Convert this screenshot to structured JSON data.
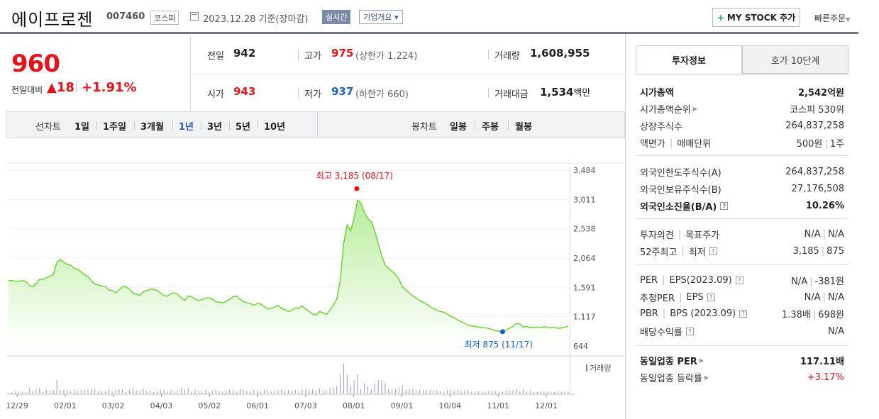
{
  "header": {
    "company": "에이프로젠",
    "code": "007460",
    "market": "코스피",
    "date": "2023.12.28 기준(장마감)",
    "realtime": "실시간",
    "overview": "기업개요",
    "mystock": "MY STOCK 추가",
    "quick_order": "빠른주문"
  },
  "quote": {
    "price": "960",
    "change_label": "전일대비",
    "change_value": "18",
    "change_pct": "+1.91%",
    "prev_label": "전일",
    "prev": "942",
    "high_label": "고가",
    "high": "975",
    "upper_limit": "(상한가 1,224)",
    "volume_label": "거래량",
    "volume": "1,608,955",
    "open_label": "시가",
    "open": "943",
    "low_label": "저가",
    "low": "937",
    "lower_limit": "(하한가 660)",
    "amount_label": "거래대금",
    "amount": "1,534",
    "amount_unit": "백만"
  },
  "chart_tabs": {
    "line_label": "선차트",
    "line_periods": [
      "1일",
      "1주일",
      "3개월",
      "1년",
      "3년",
      "5년",
      "10년"
    ],
    "selected": "1년",
    "candle_label": "봉차트",
    "candle_periods": [
      "일봉",
      "주봉",
      "월봉"
    ]
  },
  "chart_data": {
    "type": "area",
    "y_ticks": [
      "3,484",
      "3,011",
      "2,538",
      "2,064",
      "1,591",
      "1,117",
      "644"
    ],
    "ylim": [
      644,
      3484
    ],
    "x_ticks": [
      "12/29",
      "02/01",
      "03/02",
      "04/03",
      "05/02",
      "06/01",
      "07/03",
      "08/01",
      "09/01",
      "10/04",
      "11/01",
      "12/01"
    ],
    "high_annotation": "최고 3,185 (08/17)",
    "low_annotation": "최저 875 (11/17)",
    "volume_label": "거래량",
    "series": [
      {
        "values": [
          1700,
          1700,
          1690,
          1690,
          1700,
          1690,
          1620,
          1600,
          1650,
          1720,
          1720,
          1750,
          1770,
          1800,
          2000,
          2040,
          2000,
          1960,
          1950,
          1900,
          1880,
          1840,
          1800,
          1760,
          1700,
          1640,
          1630,
          1610,
          1600,
          1550,
          1540,
          1500,
          1550,
          1600,
          1600,
          1560,
          1500,
          1480,
          1460,
          1520,
          1540,
          1560,
          1560,
          1540,
          1500,
          1460,
          1450,
          1490,
          1500,
          1480,
          1420,
          1380,
          1450,
          1440,
          1400,
          1380,
          1390,
          1420,
          1420,
          1400,
          1360,
          1350,
          1340,
          1360,
          1400,
          1440,
          1450,
          1400,
          1360,
          1340,
          1330,
          1300,
          1330,
          1320,
          1280,
          1240,
          1250,
          1270,
          1300,
          1250,
          1230,
          1200,
          1220,
          1260,
          1250,
          1290,
          1240,
          1200,
          1160,
          1140,
          1200,
          1180,
          1150,
          1220,
          1300,
          1400,
          1700,
          2300,
          2600,
          2500,
          2700,
          3000,
          2950,
          2800,
          2700,
          2650,
          2500,
          2300,
          2100,
          1950,
          1900,
          1850,
          1800,
          1720,
          1600,
          1550,
          1500,
          1450,
          1420,
          1380,
          1350,
          1320,
          1280,
          1250,
          1220,
          1200,
          1190,
          1160,
          1120,
          1100,
          1060,
          1040,
          1010,
          980,
          970,
          960,
          950,
          940,
          940,
          925,
          910,
          890,
          880,
          875,
          900,
          930,
          960,
          1010,
          1000,
          950,
          960,
          940,
          945,
          950,
          940,
          955,
          945,
          940,
          945,
          930,
          935,
          950,
          960
        ]
      }
    ]
  },
  "invest_tabs": {
    "active": "투자정보",
    "other": "호가 10단계"
  },
  "invest_info": {
    "market_cap_label": "시가총액",
    "market_cap": "2,542억원",
    "cap_rank_label": "시가총액순위",
    "cap_rank": "코스피 530위",
    "shares_label": "상장주식수",
    "shares": "264,837,258",
    "par_label": "액면가",
    "unit_label": "매매단위",
    "par": "500원",
    "unit": "1주",
    "foreign_limit_label": "외국인한도주식수(A)",
    "foreign_limit": "264,837,258",
    "foreign_hold_label": "외국인보유주식수(B)",
    "foreign_hold": "27,176,508",
    "foreign_ratio_label": "외국인소진율(B/A)",
    "foreign_ratio": "10.26%",
    "opinion_label": "투자의견",
    "target_label": "목표주가",
    "opinion": "N/A",
    "target": "N/A",
    "wk52_high_label": "52주최고",
    "wk52_low_label": "최저",
    "wk52_high": "3,185",
    "wk52_low": "875",
    "per_label": "PER",
    "eps_label": "EPS(2023.09)",
    "per": "N/A",
    "eps": "-381원",
    "est_per_label": "추정PER",
    "est_eps_label": "EPS",
    "est_per": "N/A",
    "est_eps": "N/A",
    "pbr_label": "PBR",
    "bps_label": "BPS (2023.09)",
    "pbr": "1.38배",
    "bps": "698원",
    "dividend_label": "배당수익률",
    "dividend": "N/A",
    "sector_per_label": "동일업종 PER",
    "sector_per": "117.11배",
    "sector_rate_label": "동일업종 등락률",
    "sector_rate": "+3.17%"
  }
}
